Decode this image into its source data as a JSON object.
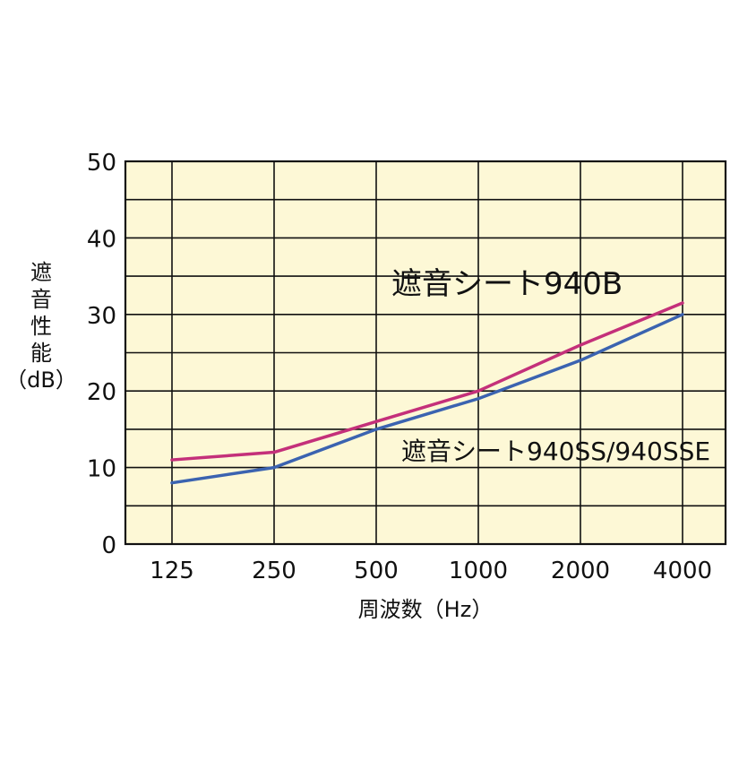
{
  "chart_data": {
    "type": "line",
    "categories": [
      "125",
      "250",
      "500",
      "1000",
      "2000",
      "4000"
    ],
    "ylim": [
      0,
      50
    ],
    "yticks": [
      "0",
      "10",
      "20",
      "30",
      "40",
      "50"
    ],
    "ylabel_lines": [
      "遮",
      "音",
      "性",
      "能",
      "（dB）"
    ],
    "xlabel": "周波数（Hz）",
    "grid": true,
    "background": "#fdf8d6",
    "series": [
      {
        "name": "遮音シート940B",
        "color": "#c4307a",
        "values": [
          11,
          12,
          16,
          20,
          26,
          31.5
        ]
      },
      {
        "name": "遮音シート940SS/940SSE",
        "color": "#3b63b0",
        "values": [
          8,
          10,
          15,
          19,
          24,
          30
        ]
      }
    ]
  }
}
